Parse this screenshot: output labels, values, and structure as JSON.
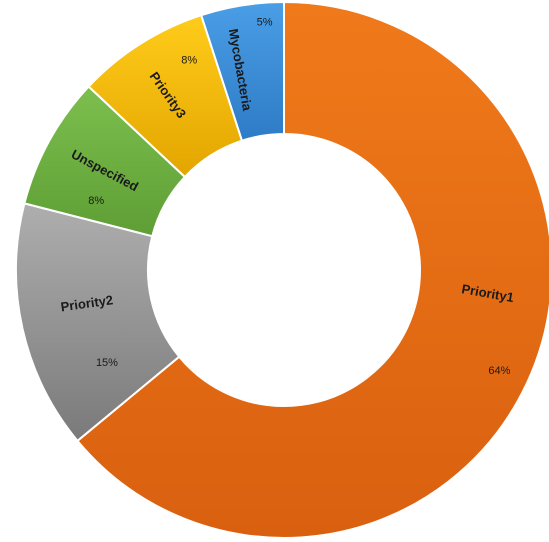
{
  "chart_data": {
    "type": "pie",
    "variant": "donut",
    "title": "",
    "legend": "none",
    "slices": [
      {
        "label": "Priority1",
        "value": 64,
        "value_label": "64%",
        "color": "#F07A1A",
        "color_dark": "#D9600F"
      },
      {
        "label": "Priority2",
        "value": 15,
        "value_label": "15%",
        "color": "#AEAEAE",
        "color_dark": "#7A7A7A"
      },
      {
        "label": "Unspecified",
        "value": 8,
        "value_label": "8%",
        "color": "#7DBF4E",
        "color_dark": "#5E9E35"
      },
      {
        "label": "Priority3",
        "value": 8,
        "value_label": "8%",
        "color": "#FFCC1A",
        "color_dark": "#E3A500"
      },
      {
        "label": "Mycobacteria",
        "value": 5,
        "value_label": "5%",
        "color": "#4A9EE6",
        "color_dark": "#2E7BC6"
      }
    ]
  }
}
